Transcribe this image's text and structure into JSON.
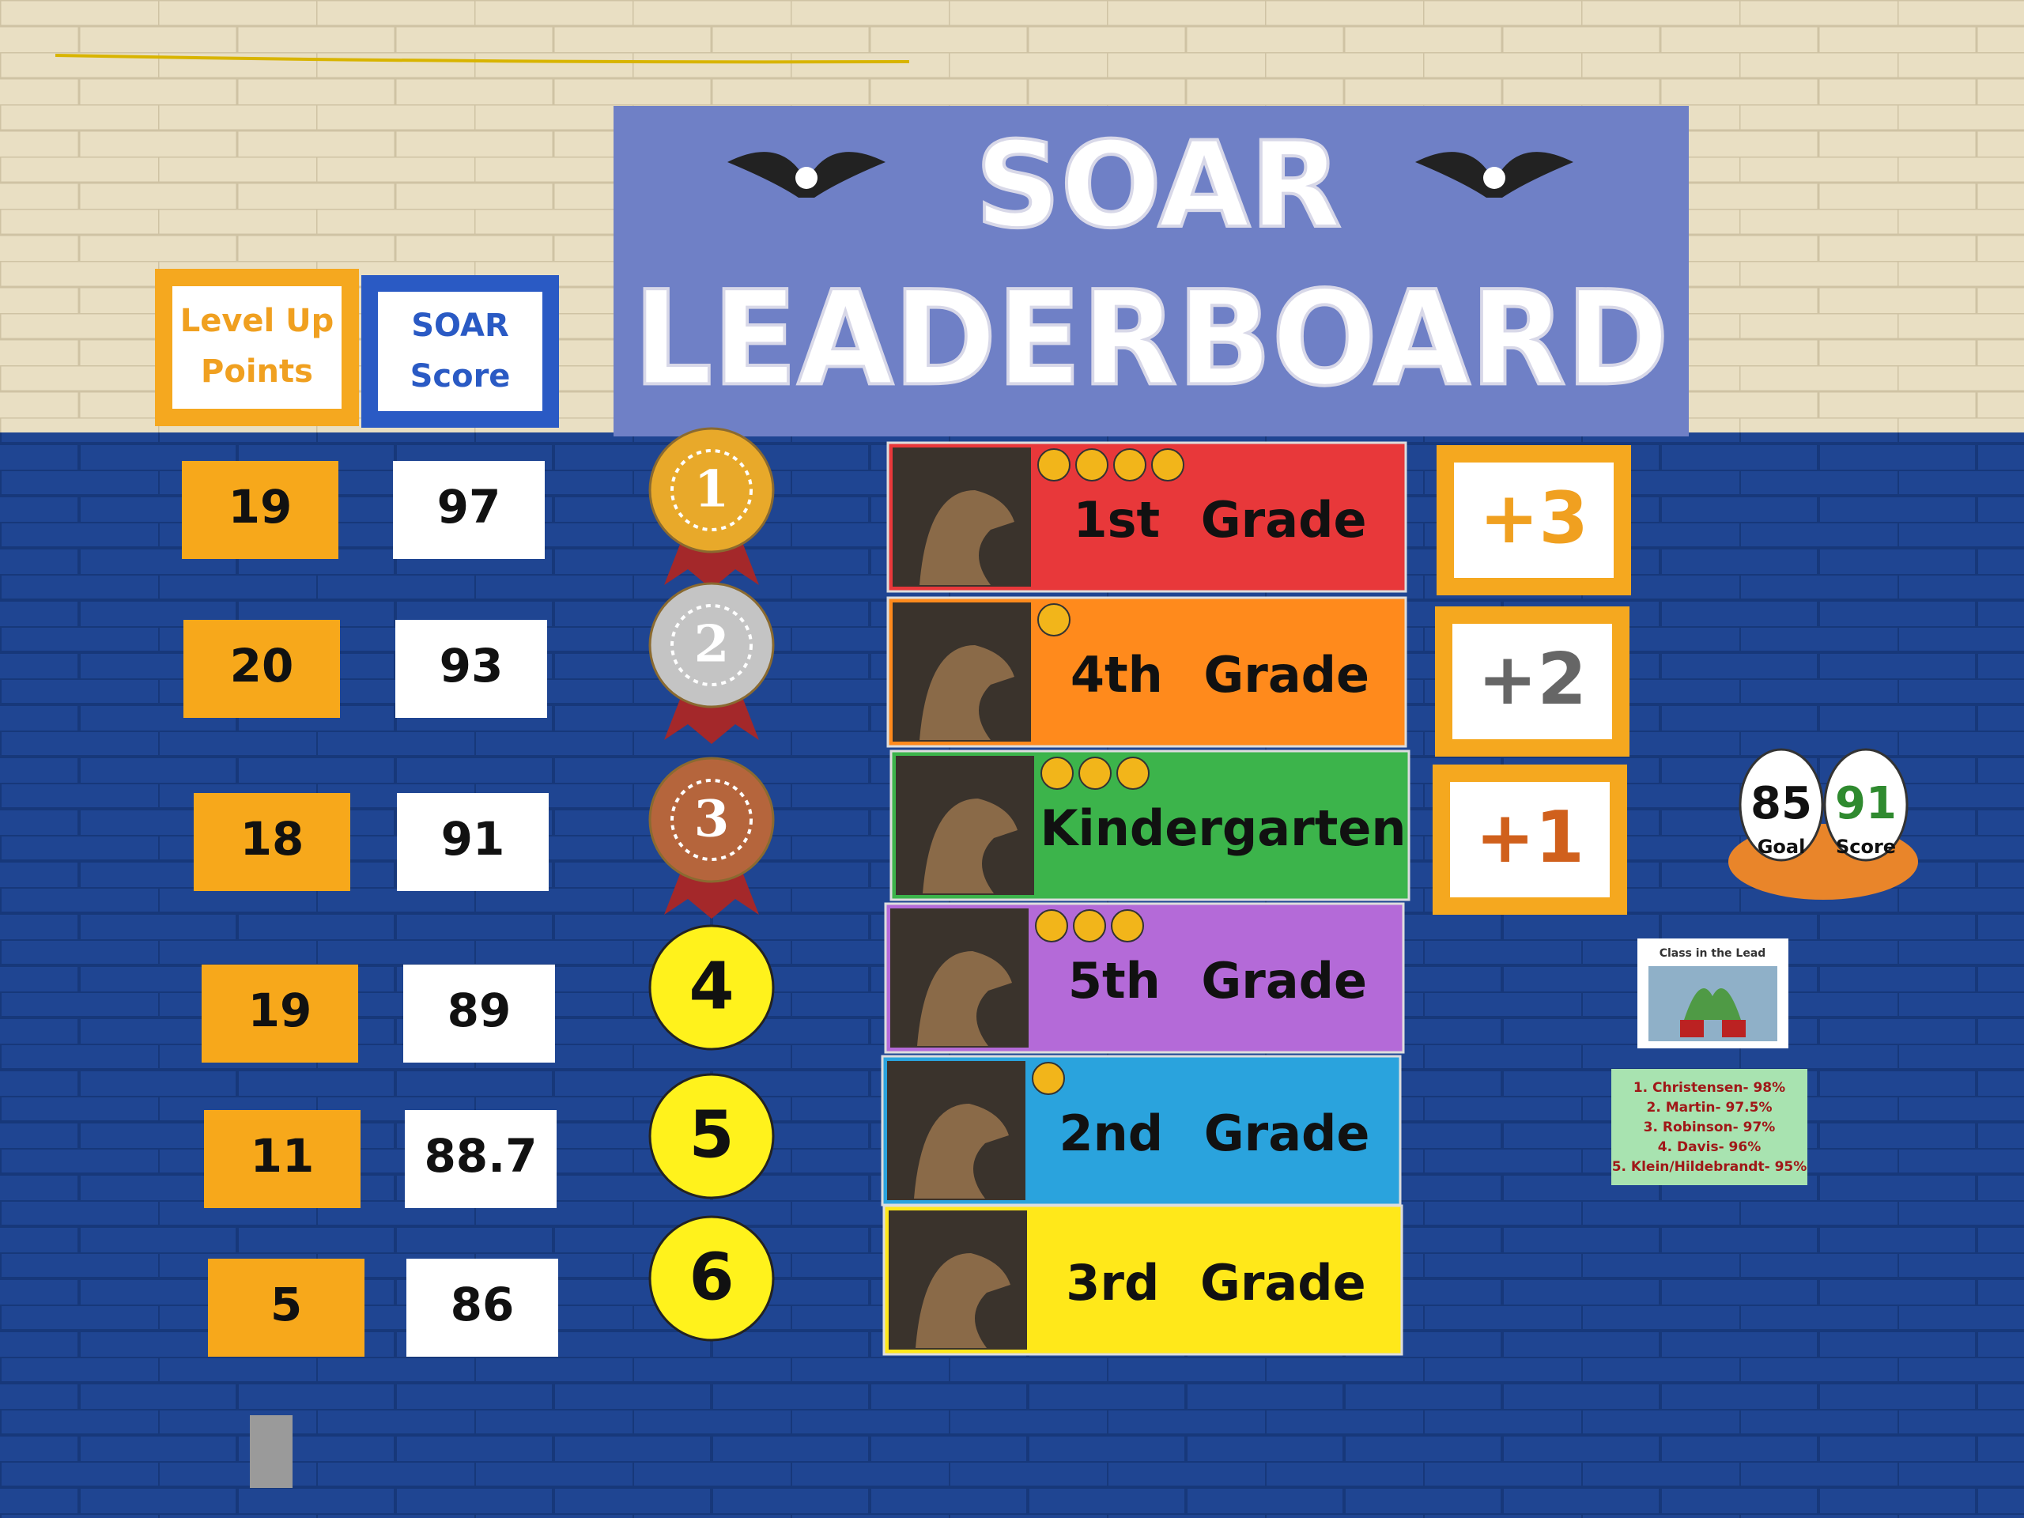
{
  "banner": {
    "line1": "SOAR",
    "line2": "LEADERBOARD"
  },
  "headers": {
    "level_up": [
      "Level Up",
      "Points"
    ],
    "soar_score": [
      "SOAR",
      "Score"
    ]
  },
  "rows": [
    {
      "points": 19,
      "score": 97,
      "rank": 1,
      "grade": "1st Grade"
    },
    {
      "points": 20,
      "score": 93,
      "rank": 2,
      "grade": "4th Grade"
    },
    {
      "points": 18,
      "score": 91,
      "rank": 3,
      "grade": "Kindergarten"
    },
    {
      "points": 19,
      "score": 89,
      "rank": 4,
      "grade": "5th Grade"
    },
    {
      "points": 11,
      "score": 88.7,
      "rank": 5,
      "grade": "2nd Grade"
    },
    {
      "points": 5,
      "score": 86,
      "rank": 6,
      "grade": "3rd Grade"
    }
  ],
  "bonuses": [
    "+3",
    "+2",
    "+1"
  ],
  "goal": {
    "goal_value": 85,
    "goal_label": "Goal",
    "score_value": 91,
    "score_label": "Score"
  },
  "class_in_lead": {
    "title": "Class in the Lead"
  },
  "top_list": [
    "1. Christensen- 98%",
    "2. Martin- 97.5%",
    "3. Robinson- 97%",
    "4. Davis- 96%",
    "5. Klein/Hildebrandt- 95%"
  ]
}
